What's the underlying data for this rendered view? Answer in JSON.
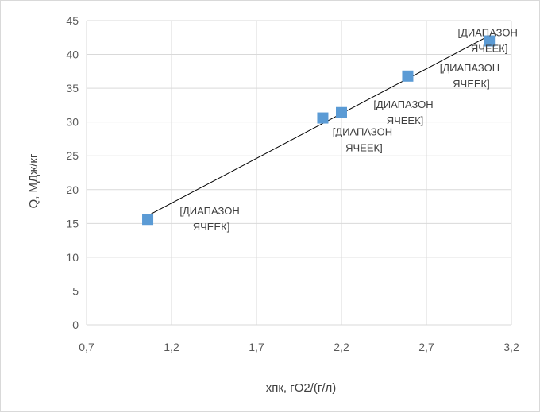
{
  "chart_data": {
    "type": "scatter",
    "title": "",
    "xlabel": "хпк, гО2/(г/л)",
    "ylabel": "Q, МДж/кг",
    "xlim": [
      0.7,
      3.2
    ],
    "ylim": [
      0,
      45
    ],
    "x_ticks": [
      "0,7",
      "1,2",
      "1,7",
      "2,2",
      "2,7",
      "3,2"
    ],
    "y_ticks": [
      "0",
      "5",
      "10",
      "15",
      "20",
      "25",
      "30",
      "35",
      "40",
      "45"
    ],
    "grid": "vertical and horizontal",
    "legend": "none",
    "marker_color": "#5b9bd5",
    "trendline": {
      "type": "linear",
      "color": "#000000"
    },
    "series": [
      {
        "points": [
          {
            "x": 1.06,
            "y": 15.6,
            "label_line1": "[ДИАПАЗОН",
            "label_line2": "ЯЧЕЕК]"
          },
          {
            "x": 2.09,
            "y": 30.6,
            "label_line1": "[ДИАПАЗОН",
            "label_line2": "ЯЧЕЕК]"
          },
          {
            "x": 2.2,
            "y": 31.4,
            "label_line1": "[ДИАПАЗОН",
            "label_line2": "ЯЧЕЕК]"
          },
          {
            "x": 2.59,
            "y": 36.8,
            "label_line1": "[ДИАПАЗОН",
            "label_line2": "ЯЧЕЕК]"
          },
          {
            "x": 3.07,
            "y": 42.0,
            "label_line1": "[ДИАПАЗОН",
            "label_line2": "ЯЧЕЕК]"
          }
        ]
      }
    ]
  }
}
